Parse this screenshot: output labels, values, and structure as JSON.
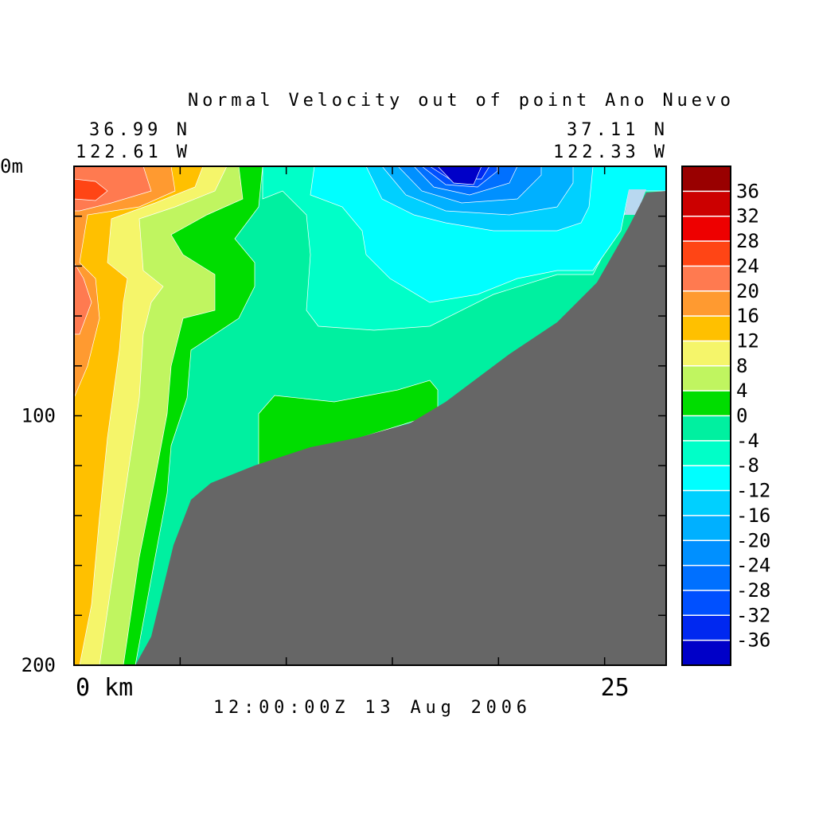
{
  "chart_data": {
    "type": "contour",
    "title": "Normal Velocity out of point Ano Nuevo",
    "left_lat": "36.99 N",
    "left_lon": "122.61 W",
    "right_lat": "37.11 N",
    "right_lon": "122.33 W",
    "time_label": "12:00:00Z  13 Aug 2006",
    "xlim": [
      0,
      27.9
    ],
    "xticks": [
      {
        "value": 0,
        "label": "0 km"
      },
      25
    ],
    "xminor": [
      5,
      10,
      15,
      20
    ],
    "ylim": [
      0,
      200
    ],
    "yticks": [
      {
        "value": 0,
        "label": "0m"
      },
      100,
      200
    ],
    "yminor": [
      20,
      40,
      60,
      80,
      120,
      140,
      160,
      180
    ],
    "y_inverted": true,
    "colorbar": {
      "levels": [
        -40,
        -36,
        -32,
        -28,
        -24,
        -20,
        -16,
        -12,
        -8,
        -4,
        0,
        4,
        8,
        12,
        16,
        20,
        24,
        28,
        32,
        36,
        40
      ],
      "colors": [
        "#0000c8",
        "#0028f0",
        "#0050ff",
        "#0070ff",
        "#0090ff",
        "#00b0ff",
        "#00d0ff",
        "#00ffff",
        "#00ffc8",
        "#00f0a0",
        "#00dd00",
        "#c0f560",
        "#f5f56a",
        "#ffc000",
        "#ff9a30",
        "#ff7a50",
        "#ff4515",
        "#ee0000",
        "#cc0000",
        "#990000"
      ],
      "ticks": [
        -36,
        -32,
        -28,
        -24,
        -20,
        -16,
        -12,
        -8,
        -4,
        0,
        4,
        8,
        12,
        16,
        20,
        24,
        28,
        32,
        36
      ]
    }
  }
}
